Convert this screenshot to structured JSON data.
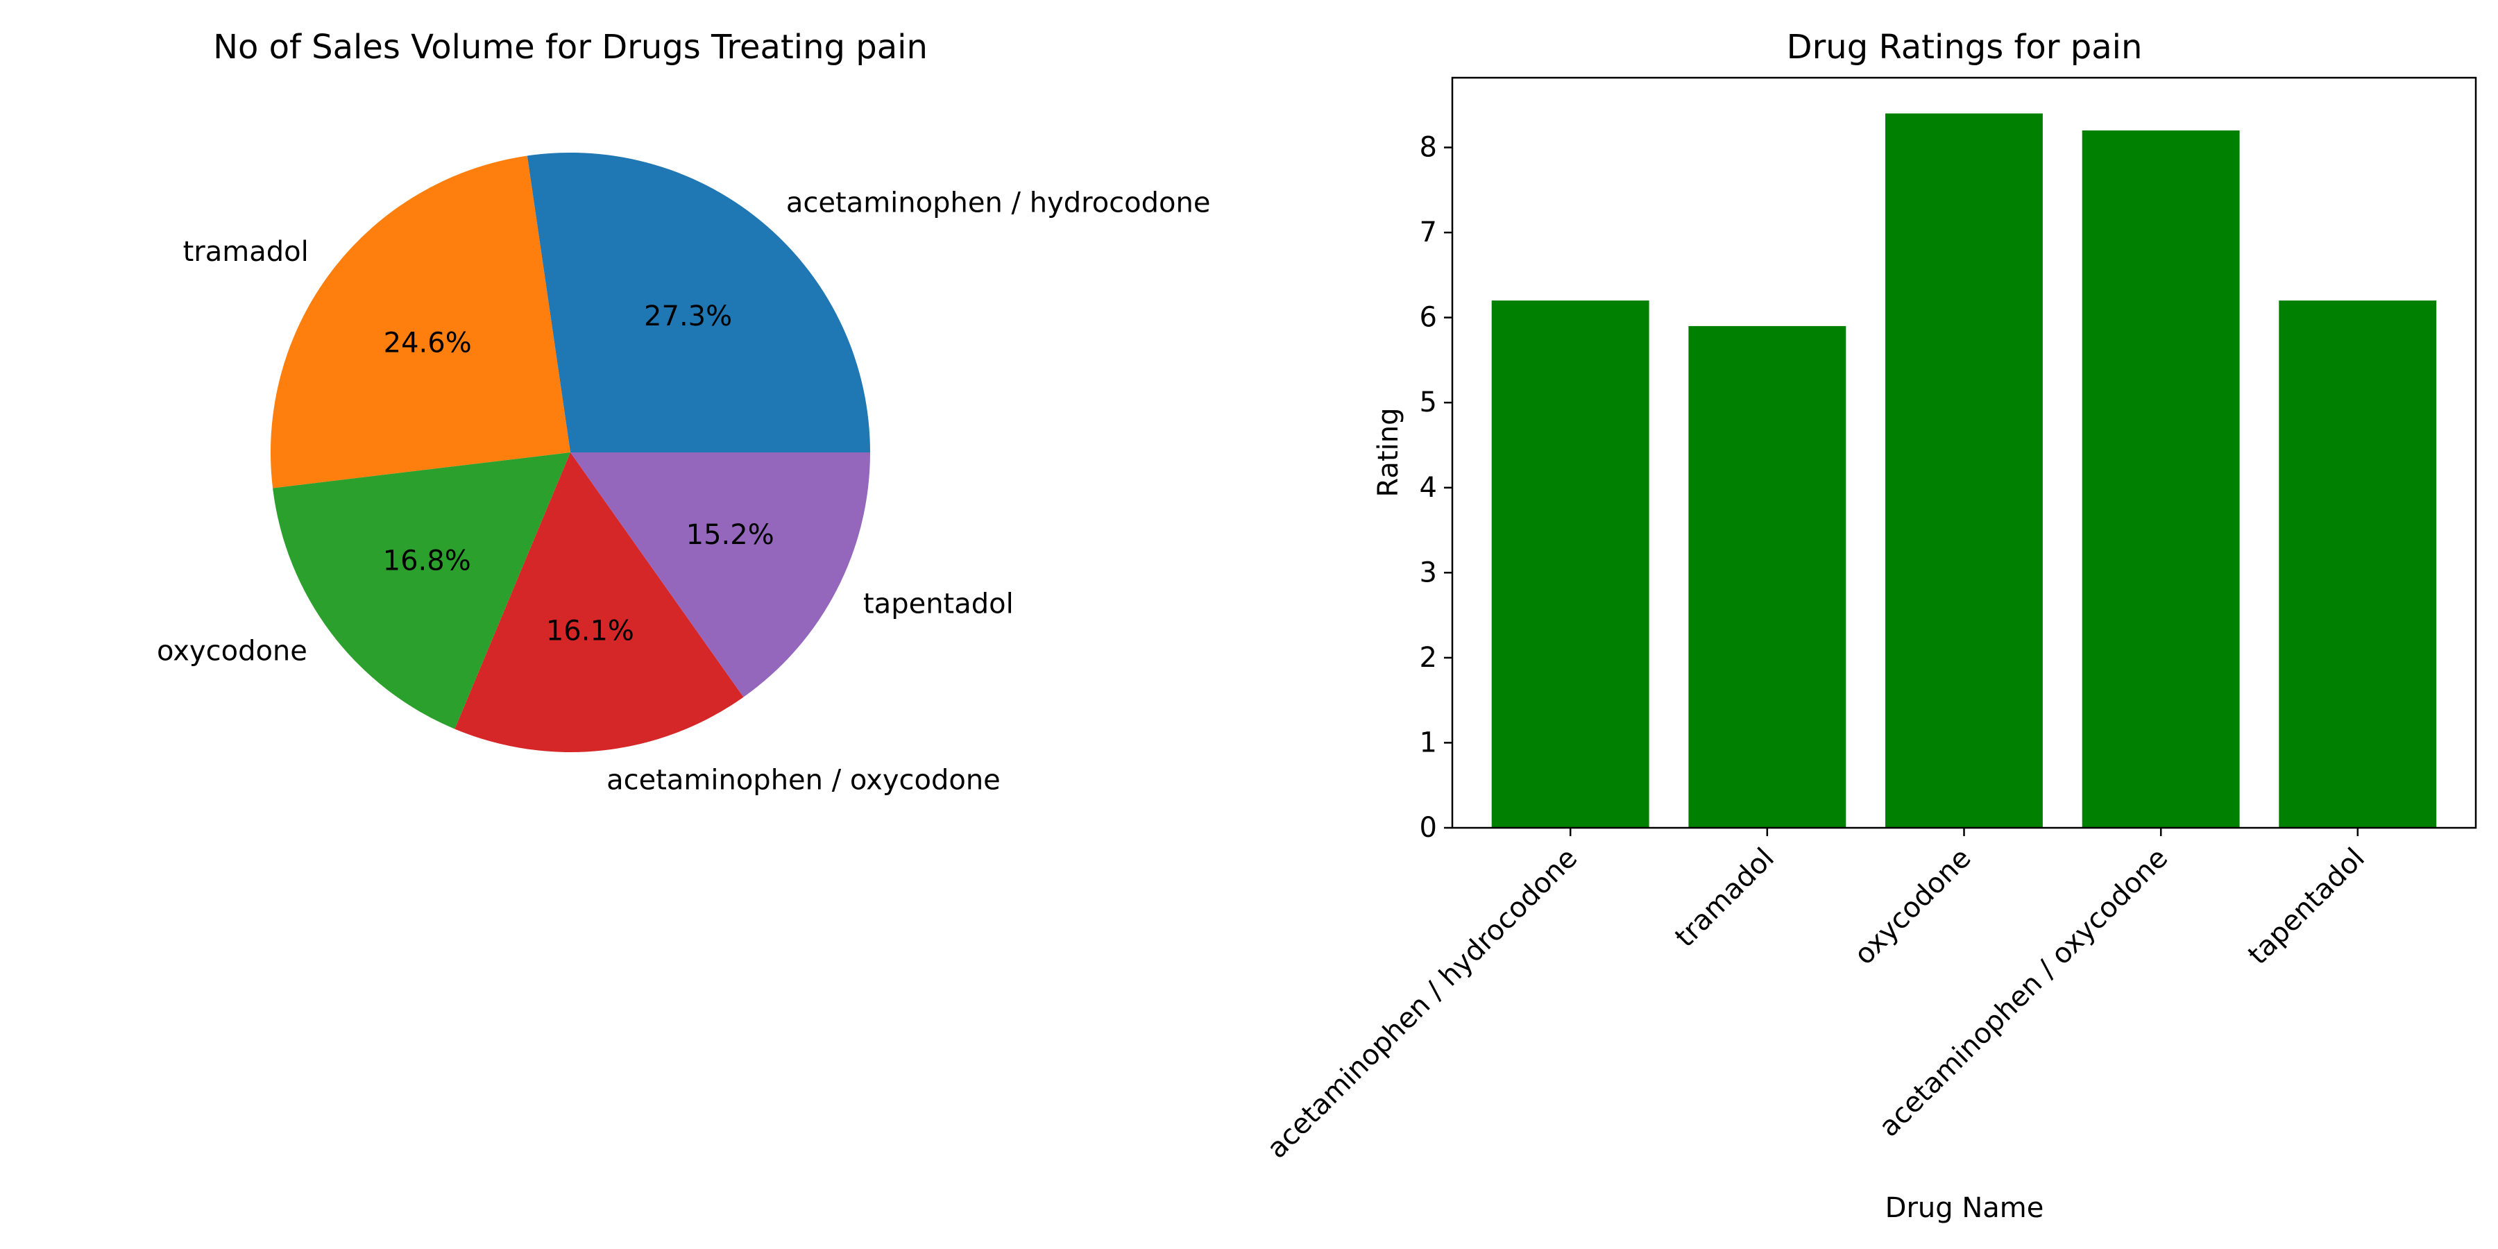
{
  "chart_data": [
    {
      "type": "pie",
      "title": "No of Sales Volume for Drugs Treating pain",
      "labels": [
        "acetaminophen / hydrocodone",
        "tramadol",
        "oxycodone",
        "acetaminophen / oxycodone",
        "tapentadol"
      ],
      "values": [
        27.3,
        24.6,
        16.8,
        16.1,
        15.2
      ],
      "value_labels": [
        "27.3%",
        "24.6%",
        "16.8%",
        "16.1%",
        "15.2%"
      ],
      "colors": [
        "#1f77b4",
        "#ff7f0e",
        "#2ca02c",
        "#d62728",
        "#9467bd"
      ],
      "start_angle": 0,
      "direction": "counterclockwise"
    },
    {
      "type": "bar",
      "title": "Drug Ratings for pain",
      "categories": [
        "acetaminophen / hydrocodone",
        "tramadol",
        "oxycodone",
        "acetaminophen / oxycodone",
        "tapentadol"
      ],
      "values": [
        6.2,
        5.9,
        8.4,
        8.2,
        6.2
      ],
      "xlabel": "Drug Name",
      "ylabel": "Rating",
      "ylim": [
        0,
        8.82
      ],
      "yticks": [
        0,
        1,
        2,
        3,
        4,
        5,
        6,
        7,
        8
      ],
      "bar_color": "#008000",
      "grid": false,
      "legend": "none"
    }
  ]
}
